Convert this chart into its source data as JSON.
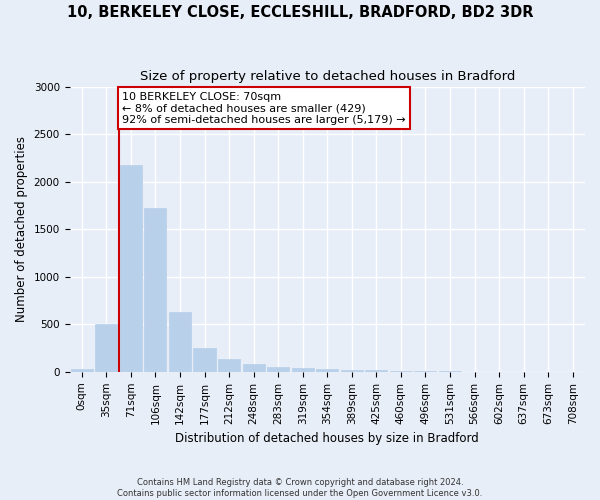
{
  "title_line1": "10, BERKELEY CLOSE, ECCLESHILL, BRADFORD, BD2 3DR",
  "title_line2": "Size of property relative to detached houses in Bradford",
  "xlabel": "Distribution of detached houses by size in Bradford",
  "ylabel": "Number of detached properties",
  "bar_values": [
    30,
    500,
    2175,
    1725,
    625,
    250,
    135,
    85,
    55,
    40,
    30,
    20,
    15,
    10,
    8,
    5,
    3,
    2,
    1,
    0,
    0
  ],
  "categories": [
    "0sqm",
    "35sqm",
    "71sqm",
    "106sqm",
    "142sqm",
    "177sqm",
    "212sqm",
    "248sqm",
    "283sqm",
    "319sqm",
    "354sqm",
    "389sqm",
    "425sqm",
    "460sqm",
    "496sqm",
    "531sqm",
    "566sqm",
    "602sqm",
    "637sqm",
    "673sqm",
    "708sqm"
  ],
  "bar_color": "#b8d0ea",
  "bar_edge_color": "#b8d0ea",
  "marker_col_index": 2,
  "marker_color": "#cc0000",
  "annotation_text": "10 BERKELEY CLOSE: 70sqm\n← 8% of detached houses are smaller (429)\n92% of semi-detached houses are larger (5,179) →",
  "annotation_box_color": "#ffffff",
  "annotation_box_edge": "#cc0000",
  "background_color": "#e8eef8",
  "plot_bg_color": "#e8eef8",
  "grid_color": "#ffffff",
  "ylim": [
    0,
    3000
  ],
  "yticks": [
    0,
    500,
    1000,
    1500,
    2000,
    2500,
    3000
  ],
  "footnote": "Contains HM Land Registry data © Crown copyright and database right 2024.\nContains public sector information licensed under the Open Government Licence v3.0.",
  "title_fontsize": 10.5,
  "subtitle_fontsize": 9.5,
  "axis_label_fontsize": 8.5,
  "tick_fontsize": 7.5
}
